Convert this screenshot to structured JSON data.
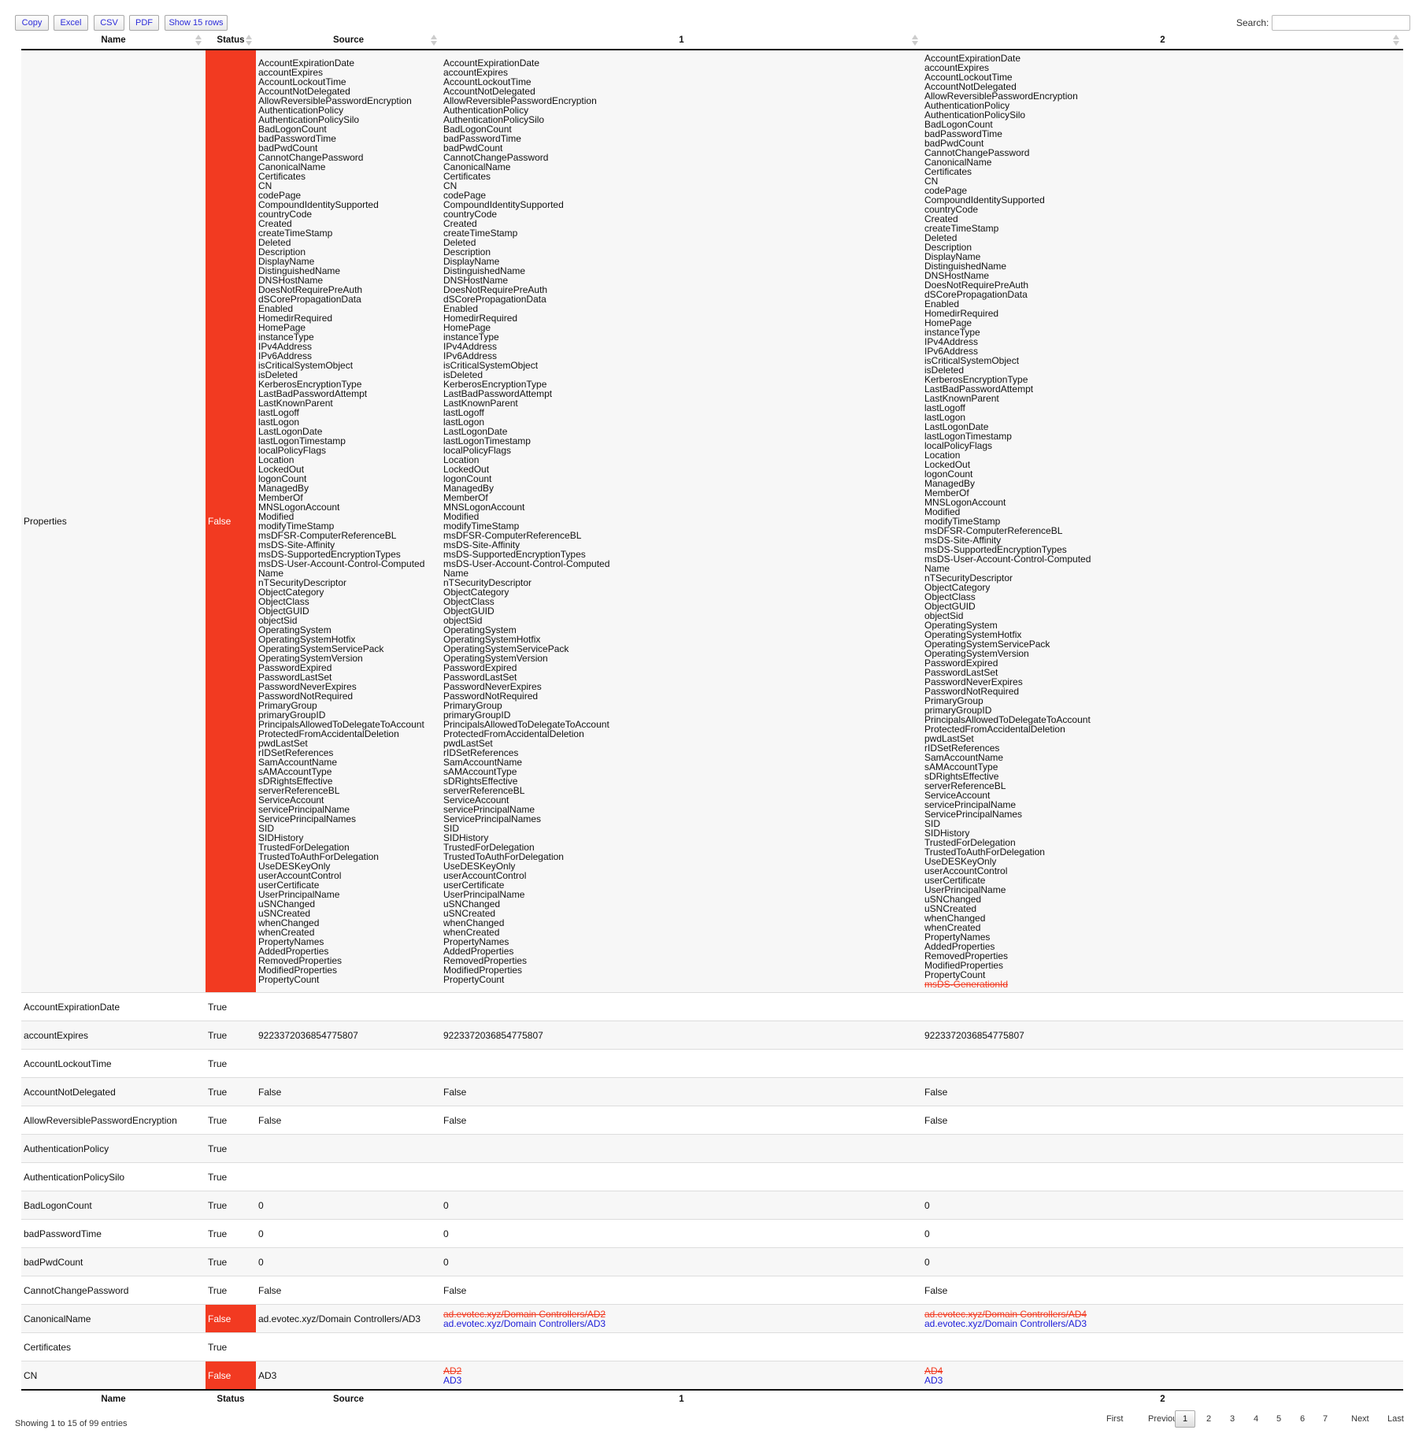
{
  "toolbar": {
    "copy": "Copy",
    "excel": "Excel",
    "csv": "CSV",
    "pdf": "PDF",
    "show_rows": "Show 15 rows"
  },
  "search": {
    "label": "Search:",
    "value": "",
    "placeholder": ""
  },
  "columns": [
    "Name",
    "Status",
    "Source",
    "1",
    "2"
  ],
  "colors": {
    "false_status": "#f23a21",
    "removed": "#f23a21",
    "added": "#1b1bd9"
  },
  "rows": [
    {
      "name": "Properties",
      "status": "False",
      "source": [
        "AccountExpirationDate",
        "accountExpires",
        "AccountLockoutTime",
        "AccountNotDelegated",
        "AllowReversiblePasswordEncryption",
        "AuthenticationPolicy",
        "AuthenticationPolicySilo",
        "BadLogonCount",
        "badPasswordTime",
        "badPwdCount",
        "CannotChangePassword",
        "CanonicalName",
        "Certificates",
        "CN",
        "codePage",
        "CompoundIdentitySupported",
        "countryCode",
        "Created",
        "createTimeStamp",
        "Deleted",
        "Description",
        "DisplayName",
        "DistinguishedName",
        "DNSHostName",
        "DoesNotRequirePreAuth",
        "dSCorePropagationData",
        "Enabled",
        "HomedirRequired",
        "HomePage",
        "instanceType",
        "IPv4Address",
        "IPv6Address",
        "isCriticalSystemObject",
        "isDeleted",
        "KerberosEncryptionType",
        "LastBadPasswordAttempt",
        "LastKnownParent",
        "lastLogoff",
        "lastLogon",
        "LastLogonDate",
        "lastLogonTimestamp",
        "localPolicyFlags",
        "Location",
        "LockedOut",
        "logonCount",
        "ManagedBy",
        "MemberOf",
        "MNSLogonAccount",
        "Modified",
        "modifyTimeStamp",
        "msDFSR-ComputerReferenceBL",
        "msDS-Site-Affinity",
        "msDS-SupportedEncryptionTypes",
        "msDS-User-Account-Control-Computed",
        "Name",
        "nTSecurityDescriptor",
        "ObjectCategory",
        "ObjectClass",
        "ObjectGUID",
        "objectSid",
        "OperatingSystem",
        "OperatingSystemHotfix",
        "OperatingSystemServicePack",
        "OperatingSystemVersion",
        "PasswordExpired",
        "PasswordLastSet",
        "PasswordNeverExpires",
        "PasswordNotRequired",
        "PrimaryGroup",
        "primaryGroupID",
        "PrincipalsAllowedToDelegateToAccount",
        "ProtectedFromAccidentalDeletion",
        "pwdLastSet",
        "rIDSetReferences",
        "SamAccountName",
        "sAMAccountType",
        "sDRightsEffective",
        "serverReferenceBL",
        "ServiceAccount",
        "servicePrincipalName",
        "ServicePrincipalNames",
        "SID",
        "SIDHistory",
        "TrustedForDelegation",
        "TrustedToAuthForDelegation",
        "UseDESKeyOnly",
        "userAccountControl",
        "userCertificate",
        "UserPrincipalName",
        "uSNChanged",
        "uSNCreated",
        "whenChanged",
        "whenCreated",
        "PropertyNames",
        "AddedProperties",
        "RemovedProperties",
        "ModifiedProperties",
        "PropertyCount"
      ],
      "c1": [
        "AccountExpirationDate",
        "accountExpires",
        "AccountLockoutTime",
        "AccountNotDelegated",
        "AllowReversiblePasswordEncryption",
        "AuthenticationPolicy",
        "AuthenticationPolicySilo",
        "BadLogonCount",
        "badPasswordTime",
        "badPwdCount",
        "CannotChangePassword",
        "CanonicalName",
        "Certificates",
        "CN",
        "codePage",
        "CompoundIdentitySupported",
        "countryCode",
        "Created",
        "createTimeStamp",
        "Deleted",
        "Description",
        "DisplayName",
        "DistinguishedName",
        "DNSHostName",
        "DoesNotRequirePreAuth",
        "dSCorePropagationData",
        "Enabled",
        "HomedirRequired",
        "HomePage",
        "instanceType",
        "IPv4Address",
        "IPv6Address",
        "isCriticalSystemObject",
        "isDeleted",
        "KerberosEncryptionType",
        "LastBadPasswordAttempt",
        "LastKnownParent",
        "lastLogoff",
        "lastLogon",
        "LastLogonDate",
        "lastLogonTimestamp",
        "localPolicyFlags",
        "Location",
        "LockedOut",
        "logonCount",
        "ManagedBy",
        "MemberOf",
        "MNSLogonAccount",
        "Modified",
        "modifyTimeStamp",
        "msDFSR-ComputerReferenceBL",
        "msDS-Site-Affinity",
        "msDS-SupportedEncryptionTypes",
        "msDS-User-Account-Control-Computed",
        "Name",
        "nTSecurityDescriptor",
        "ObjectCategory",
        "ObjectClass",
        "ObjectGUID",
        "objectSid",
        "OperatingSystem",
        "OperatingSystemHotfix",
        "OperatingSystemServicePack",
        "OperatingSystemVersion",
        "PasswordExpired",
        "PasswordLastSet",
        "PasswordNeverExpires",
        "PasswordNotRequired",
        "PrimaryGroup",
        "primaryGroupID",
        "PrincipalsAllowedToDelegateToAccount",
        "ProtectedFromAccidentalDeletion",
        "pwdLastSet",
        "rIDSetReferences",
        "SamAccountName",
        "sAMAccountType",
        "sDRightsEffective",
        "serverReferenceBL",
        "ServiceAccount",
        "servicePrincipalName",
        "ServicePrincipalNames",
        "SID",
        "SIDHistory",
        "TrustedForDelegation",
        "TrustedToAuthForDelegation",
        "UseDESKeyOnly",
        "userAccountControl",
        "userCertificate",
        "UserPrincipalName",
        "uSNChanged",
        "uSNCreated",
        "whenChanged",
        "whenCreated",
        "PropertyNames",
        "AddedProperties",
        "RemovedProperties",
        "ModifiedProperties",
        "PropertyCount"
      ],
      "c2": [
        "AccountExpirationDate",
        "accountExpires",
        "AccountLockoutTime",
        "AccountNotDelegated",
        "AllowReversiblePasswordEncryption",
        "AuthenticationPolicy",
        "AuthenticationPolicySilo",
        "BadLogonCount",
        "badPasswordTime",
        "badPwdCount",
        "CannotChangePassword",
        "CanonicalName",
        "Certificates",
        "CN",
        "codePage",
        "CompoundIdentitySupported",
        "countryCode",
        "Created",
        "createTimeStamp",
        "Deleted",
        "Description",
        "DisplayName",
        "DistinguishedName",
        "DNSHostName",
        "DoesNotRequirePreAuth",
        "dSCorePropagationData",
        "Enabled",
        "HomedirRequired",
        "HomePage",
        "instanceType",
        "IPv4Address",
        "IPv6Address",
        "isCriticalSystemObject",
        "isDeleted",
        "KerberosEncryptionType",
        "LastBadPasswordAttempt",
        "LastKnownParent",
        "lastLogoff",
        "lastLogon",
        "LastLogonDate",
        "lastLogonTimestamp",
        "localPolicyFlags",
        "Location",
        "LockedOut",
        "logonCount",
        "ManagedBy",
        "MemberOf",
        "MNSLogonAccount",
        "Modified",
        "modifyTimeStamp",
        "msDFSR-ComputerReferenceBL",
        "msDS-Site-Affinity",
        "msDS-SupportedEncryptionTypes",
        "msDS-User-Account-Control-Computed",
        "Name",
        "nTSecurityDescriptor",
        "ObjectCategory",
        "ObjectClass",
        "ObjectGUID",
        "objectSid",
        "OperatingSystem",
        "OperatingSystemHotfix",
        "OperatingSystemServicePack",
        "OperatingSystemVersion",
        "PasswordExpired",
        "PasswordLastSet",
        "PasswordNeverExpires",
        "PasswordNotRequired",
        "PrimaryGroup",
        "primaryGroupID",
        "PrincipalsAllowedToDelegateToAccount",
        "ProtectedFromAccidentalDeletion",
        "pwdLastSet",
        "rIDSetReferences",
        "SamAccountName",
        "sAMAccountType",
        "sDRightsEffective",
        "serverReferenceBL",
        "ServiceAccount",
        "servicePrincipalName",
        "ServicePrincipalNames",
        "SID",
        "SIDHistory",
        "TrustedForDelegation",
        "TrustedToAuthForDelegation",
        "UseDESKeyOnly",
        "userAccountControl",
        "userCertificate",
        "UserPrincipalName",
        "uSNChanged",
        "uSNCreated",
        "whenChanged",
        "whenCreated",
        "PropertyNames",
        "AddedProperties",
        "RemovedProperties",
        "ModifiedProperties",
        "PropertyCount",
        {
          "text": "msDS-GenerationId",
          "type": "removed"
        }
      ]
    },
    {
      "name": "AccountExpirationDate",
      "status": "True",
      "source": [],
      "c1": [],
      "c2": []
    },
    {
      "name": "accountExpires",
      "status": "True",
      "source": [
        "9223372036854775807"
      ],
      "c1": [
        "9223372036854775807"
      ],
      "c2": [
        "9223372036854775807"
      ]
    },
    {
      "name": "AccountLockoutTime",
      "status": "True",
      "source": [],
      "c1": [],
      "c2": []
    },
    {
      "name": "AccountNotDelegated",
      "status": "True",
      "source": [
        "False"
      ],
      "c1": [
        "False"
      ],
      "c2": [
        "False"
      ]
    },
    {
      "name": "AllowReversiblePasswordEncryption",
      "status": "True",
      "source": [
        "False"
      ],
      "c1": [
        "False"
      ],
      "c2": [
        "False"
      ]
    },
    {
      "name": "AuthenticationPolicy",
      "status": "True",
      "source": [],
      "c1": [],
      "c2": []
    },
    {
      "name": "AuthenticationPolicySilo",
      "status": "True",
      "source": [],
      "c1": [],
      "c2": []
    },
    {
      "name": "BadLogonCount",
      "status": "True",
      "source": [
        "0"
      ],
      "c1": [
        "0"
      ],
      "c2": [
        "0"
      ]
    },
    {
      "name": "badPasswordTime",
      "status": "True",
      "source": [
        "0"
      ],
      "c1": [
        "0"
      ],
      "c2": [
        "0"
      ]
    },
    {
      "name": "badPwdCount",
      "status": "True",
      "source": [
        "0"
      ],
      "c1": [
        "0"
      ],
      "c2": [
        "0"
      ]
    },
    {
      "name": "CannotChangePassword",
      "status": "True",
      "source": [
        "False"
      ],
      "c1": [
        "False"
      ],
      "c2": [
        "False"
      ]
    },
    {
      "name": "CanonicalName",
      "status": "False",
      "source": [
        "ad.evotec.xyz/Domain Controllers/AD3"
      ],
      "c1": [
        {
          "text": "ad.evotec.xyz/Domain Controllers/AD2",
          "type": "removed"
        },
        {
          "text": "ad.evotec.xyz/Domain Controllers/AD3",
          "type": "added"
        }
      ],
      "c2": [
        {
          "text": "ad.evotec.xyz/Domain Controllers/AD4",
          "type": "removed"
        },
        {
          "text": "ad.evotec.xyz/Domain Controllers/AD3",
          "type": "added"
        }
      ]
    },
    {
      "name": "Certificates",
      "status": "True",
      "source": [],
      "c1": [],
      "c2": []
    },
    {
      "name": "CN",
      "status": "False",
      "source": [
        "AD3"
      ],
      "c1": [
        {
          "text": "AD2",
          "type": "removed"
        },
        {
          "text": "AD3",
          "type": "added"
        }
      ],
      "c2": [
        {
          "text": "AD4",
          "type": "removed"
        },
        {
          "text": "AD3",
          "type": "added"
        }
      ]
    }
  ],
  "footer": {
    "info": "Showing 1 to 15 of 99 entries"
  },
  "pagination": {
    "first": "First",
    "previous": "Previous",
    "current": "1",
    "pages": [
      "2",
      "3",
      "4",
      "5",
      "6",
      "7"
    ],
    "next": "Next",
    "last": "Last"
  }
}
